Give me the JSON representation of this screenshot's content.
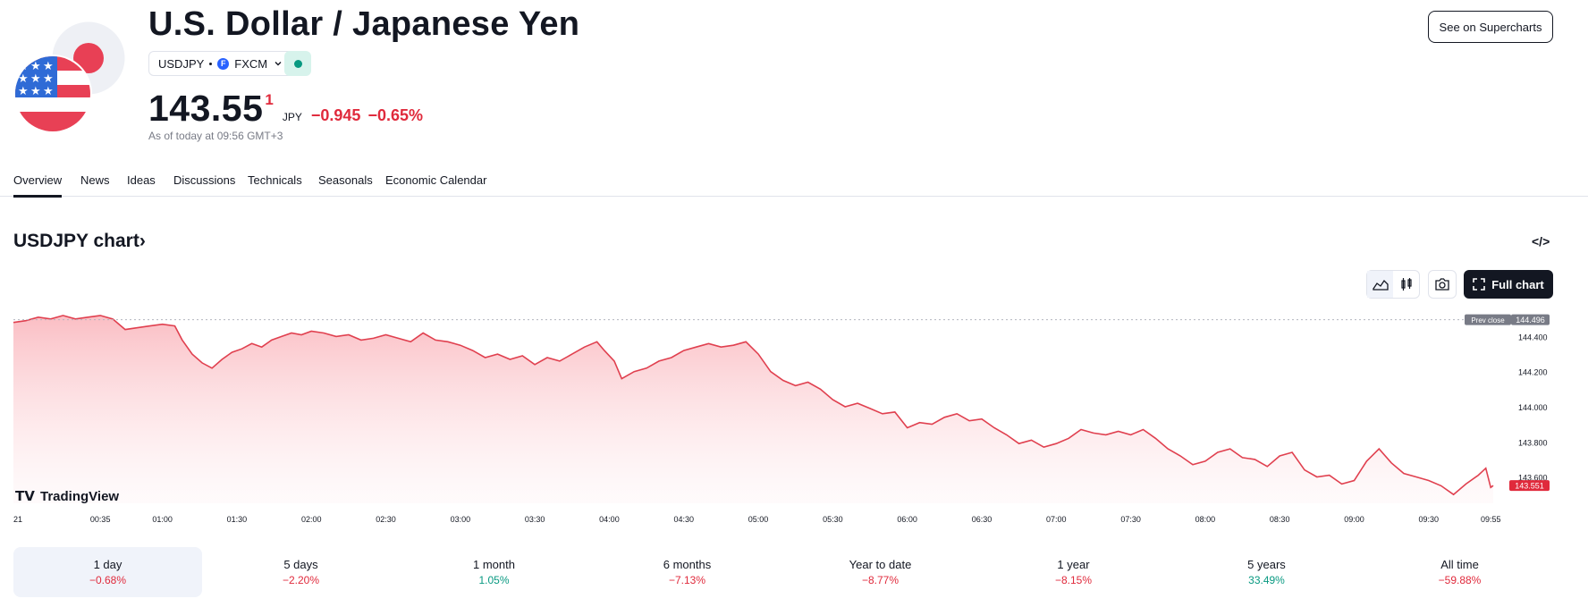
{
  "header": {
    "title": "U.S. Dollar / Japanese Yen",
    "symbol": "USDJPY",
    "exchange": "FXCM",
    "exchange_icon_letter": "F",
    "price_main": "143.55",
    "price_sup": "1",
    "currency": "JPY",
    "change": "−0.945",
    "change_percent": "−0.65%",
    "as_of": "As of today at 09:56 GMT+3",
    "supercharts_label": "See on Supercharts",
    "market_status": "open"
  },
  "tabs": [
    "Overview",
    "News",
    "Ideas",
    "Discussions",
    "Technicals",
    "Seasonals",
    "Economic Calendar"
  ],
  "active_tab": "Overview",
  "chart_section": {
    "title": "USDJPY chart",
    "title_chevron": "›",
    "embed_label": "</>",
    "full_chart_label": "Full chart"
  },
  "colors": {
    "negative": "#e02a3c",
    "positive": "#089981",
    "line": "#e0404f",
    "fill_top": "#f9a8b0"
  },
  "chart_data": {
    "type": "area",
    "watermark": "TradingView",
    "x_ticks": [
      "21",
      "00:35",
      "01:00",
      "01:30",
      "02:00",
      "02:30",
      "03:00",
      "03:30",
      "04:00",
      "04:30",
      "05:00",
      "05:30",
      "06:00",
      "06:30",
      "07:00",
      "07:30",
      "08:00",
      "08:30",
      "09:00",
      "09:30",
      "09:55"
    ],
    "y_ticks": [
      "144.400",
      "144.200",
      "144.000",
      "143.800",
      "143.600"
    ],
    "ylim": [
      143.45,
      144.56
    ],
    "prev_close_label": "Prev close",
    "prev_close": "144.496",
    "last_price": "143.551",
    "points": [
      [
        "00:00",
        144.48
      ],
      [
        "00:05",
        144.49
      ],
      [
        "00:10",
        144.51
      ],
      [
        "00:15",
        144.5
      ],
      [
        "00:20",
        144.52
      ],
      [
        "00:25",
        144.5
      ],
      [
        "00:30",
        144.51
      ],
      [
        "00:35",
        144.52
      ],
      [
        "00:40",
        144.5
      ],
      [
        "00:45",
        144.44
      ],
      [
        "00:50",
        144.45
      ],
      [
        "00:55",
        144.46
      ],
      [
        "01:00",
        144.47
      ],
      [
        "01:05",
        144.46
      ],
      [
        "01:08",
        144.38
      ],
      [
        "01:12",
        144.3
      ],
      [
        "01:16",
        144.25
      ],
      [
        "01:20",
        144.22
      ],
      [
        "01:24",
        144.27
      ],
      [
        "01:28",
        144.31
      ],
      [
        "01:32",
        144.33
      ],
      [
        "01:36",
        144.36
      ],
      [
        "01:40",
        144.34
      ],
      [
        "01:44",
        144.38
      ],
      [
        "01:48",
        144.4
      ],
      [
        "01:52",
        144.42
      ],
      [
        "01:56",
        144.41
      ],
      [
        "02:00",
        144.43
      ],
      [
        "02:05",
        144.42
      ],
      [
        "02:10",
        144.4
      ],
      [
        "02:15",
        144.41
      ],
      [
        "02:20",
        144.38
      ],
      [
        "02:25",
        144.39
      ],
      [
        "02:30",
        144.41
      ],
      [
        "02:35",
        144.39
      ],
      [
        "02:40",
        144.37
      ],
      [
        "02:45",
        144.42
      ],
      [
        "02:50",
        144.38
      ],
      [
        "02:55",
        144.37
      ],
      [
        "03:00",
        144.35
      ],
      [
        "03:05",
        144.32
      ],
      [
        "03:10",
        144.28
      ],
      [
        "03:15",
        144.3
      ],
      [
        "03:20",
        144.27
      ],
      [
        "03:25",
        144.29
      ],
      [
        "03:30",
        144.24
      ],
      [
        "03:35",
        144.28
      ],
      [
        "03:40",
        144.26
      ],
      [
        "03:45",
        144.3
      ],
      [
        "03:50",
        144.34
      ],
      [
        "03:55",
        144.37
      ],
      [
        "03:58",
        144.32
      ],
      [
        "04:02",
        144.26
      ],
      [
        "04:05",
        144.16
      ],
      [
        "04:10",
        144.2
      ],
      [
        "04:15",
        144.22
      ],
      [
        "04:20",
        144.26
      ],
      [
        "04:25",
        144.28
      ],
      [
        "04:30",
        144.32
      ],
      [
        "04:35",
        144.34
      ],
      [
        "04:40",
        144.36
      ],
      [
        "04:45",
        144.34
      ],
      [
        "04:50",
        144.35
      ],
      [
        "04:55",
        144.37
      ],
      [
        "05:00",
        144.3
      ],
      [
        "05:05",
        144.2
      ],
      [
        "05:10",
        144.15
      ],
      [
        "05:15",
        144.12
      ],
      [
        "05:20",
        144.14
      ],
      [
        "05:25",
        144.1
      ],
      [
        "05:30",
        144.04
      ],
      [
        "05:35",
        144.0
      ],
      [
        "05:40",
        144.02
      ],
      [
        "05:45",
        143.99
      ],
      [
        "05:50",
        143.96
      ],
      [
        "05:55",
        143.97
      ],
      [
        "06:00",
        143.88
      ],
      [
        "06:05",
        143.91
      ],
      [
        "06:10",
        143.9
      ],
      [
        "06:15",
        143.94
      ],
      [
        "06:20",
        143.96
      ],
      [
        "06:25",
        143.92
      ],
      [
        "06:30",
        143.93
      ],
      [
        "06:35",
        143.88
      ],
      [
        "06:40",
        143.84
      ],
      [
        "06:45",
        143.79
      ],
      [
        "06:50",
        143.81
      ],
      [
        "06:55",
        143.77
      ],
      [
        "07:00",
        143.79
      ],
      [
        "07:05",
        143.82
      ],
      [
        "07:10",
        143.87
      ],
      [
        "07:15",
        143.85
      ],
      [
        "07:20",
        143.84
      ],
      [
        "07:25",
        143.86
      ],
      [
        "07:30",
        143.84
      ],
      [
        "07:35",
        143.87
      ],
      [
        "07:40",
        143.82
      ],
      [
        "07:45",
        143.76
      ],
      [
        "07:50",
        143.72
      ],
      [
        "07:55",
        143.67
      ],
      [
        "08:00",
        143.69
      ],
      [
        "08:05",
        143.74
      ],
      [
        "08:10",
        143.76
      ],
      [
        "08:15",
        143.71
      ],
      [
        "08:20",
        143.7
      ],
      [
        "08:25",
        143.66
      ],
      [
        "08:30",
        143.72
      ],
      [
        "08:35",
        143.74
      ],
      [
        "08:40",
        143.64
      ],
      [
        "08:45",
        143.6
      ],
      [
        "08:50",
        143.61
      ],
      [
        "08:55",
        143.56
      ],
      [
        "09:00",
        143.58
      ],
      [
        "09:05",
        143.69
      ],
      [
        "09:10",
        143.76
      ],
      [
        "09:15",
        143.68
      ],
      [
        "09:20",
        143.62
      ],
      [
        "09:25",
        143.6
      ],
      [
        "09:30",
        143.58
      ],
      [
        "09:35",
        143.55
      ],
      [
        "09:40",
        143.5
      ],
      [
        "09:45",
        143.56
      ],
      [
        "09:50",
        143.61
      ],
      [
        "09:53",
        143.65
      ],
      [
        "09:55",
        143.54
      ],
      [
        "09:56",
        143.551
      ]
    ]
  },
  "periods": [
    {
      "label": "1 day",
      "value": "−0.68%",
      "dir": "neg"
    },
    {
      "label": "5 days",
      "value": "−2.20%",
      "dir": "neg"
    },
    {
      "label": "1 month",
      "value": "1.05%",
      "dir": "pos"
    },
    {
      "label": "6 months",
      "value": "−7.13%",
      "dir": "neg"
    },
    {
      "label": "Year to date",
      "value": "−8.77%",
      "dir": "neg"
    },
    {
      "label": "1 year",
      "value": "−8.15%",
      "dir": "neg"
    },
    {
      "label": "5 years",
      "value": "33.49%",
      "dir": "pos"
    },
    {
      "label": "All time",
      "value": "−59.88%",
      "dir": "neg"
    }
  ],
  "active_period": "1 day"
}
